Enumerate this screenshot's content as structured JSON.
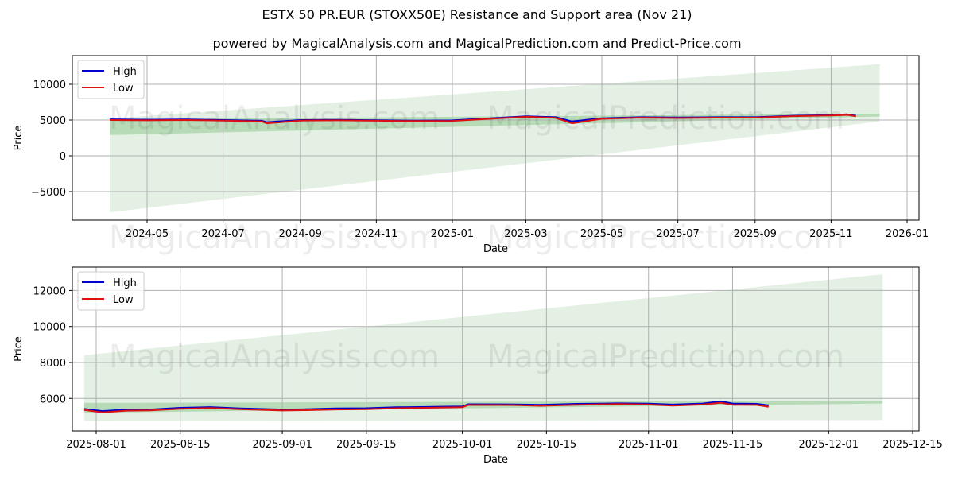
{
  "header": {
    "title": "ESTX 50 PR.EUR (STOXX50E) Resistance and Support area (Nov 21)",
    "subtitle": "powered by MagicalAnalysis.com and MagicalPrediction.com and Predict-Price.com"
  },
  "watermarks": [
    "MagicalAnalysis.com",
    "MagicalPrediction.com"
  ],
  "colors": {
    "high": "#0000cc",
    "low": "#dd1111",
    "band_light": "#e3f0e3",
    "band_dark": "#a8d4a8",
    "grid": "#b0b0b0"
  },
  "chart_data": [
    {
      "type": "line",
      "title": "",
      "xlabel": "Date",
      "ylabel": "Price",
      "ylim": [
        -9000,
        14000
      ],
      "yticks": [
        -5000,
        0,
        5000,
        10000
      ],
      "ytick_labels": [
        "−5000",
        "0",
        "5000",
        "10000"
      ],
      "xticks": [
        "2024-05",
        "2024-07",
        "2024-09",
        "2024-11",
        "2025-01",
        "2025-03",
        "2025-05",
        "2025-07",
        "2025-09",
        "2025-11",
        "2026-01"
      ],
      "grid": true,
      "legend": {
        "position": "upper left",
        "entries": [
          "High",
          "Low"
        ]
      },
      "x": [
        "2024-04-01",
        "2024-05-01",
        "2024-06-01",
        "2024-07-01",
        "2024-08-01",
        "2024-08-05",
        "2024-09-01",
        "2024-10-01",
        "2024-11-01",
        "2024-12-01",
        "2025-01-01",
        "2025-02-01",
        "2025-03-01",
        "2025-03-25",
        "2025-04-07",
        "2025-05-01",
        "2025-06-01",
        "2025-07-01",
        "2025-08-01",
        "2025-09-01",
        "2025-10-01",
        "2025-11-01",
        "2025-11-14",
        "2025-11-21"
      ],
      "series": [
        {
          "name": "High",
          "values": [
            5100,
            5050,
            5080,
            5000,
            4900,
            4700,
            5000,
            5020,
            4980,
            4920,
            4950,
            5250,
            5520,
            5400,
            4800,
            5250,
            5400,
            5350,
            5400,
            5400,
            5600,
            5700,
            5800,
            5600
          ]
        },
        {
          "name": "Low",
          "values": [
            5000,
            4950,
            5000,
            4920,
            4800,
            4550,
            4920,
            4950,
            4900,
            4850,
            4880,
            5180,
            5450,
            5300,
            4550,
            5180,
            5330,
            5280,
            5330,
            5330,
            5550,
            5650,
            5720,
            5530
          ]
        }
      ],
      "bands": [
        {
          "name": "wide support/resistance",
          "x_start": "2024-04-01",
          "x_end": "2025-12-10",
          "upper": [
            5200,
            12800
          ],
          "lower": [
            -7900,
            4800
          ]
        },
        {
          "name": "narrow support/resistance",
          "x_start": "2024-04-01",
          "x_end": "2025-12-10",
          "upper": [
            5100,
            5900
          ],
          "lower": [
            2900,
            5500
          ]
        }
      ]
    },
    {
      "type": "line",
      "title": "",
      "xlabel": "Date",
      "ylabel": "Price",
      "ylim": [
        4200,
        13300
      ],
      "yticks": [
        6000,
        8000,
        10000,
        12000
      ],
      "ytick_labels": [
        "6000",
        "8000",
        "10000",
        "12000"
      ],
      "xticks": [
        "2025-08-01",
        "2025-08-15",
        "2025-09-01",
        "2025-09-15",
        "2025-10-01",
        "2025-10-15",
        "2025-11-01",
        "2025-11-15",
        "2025-12-01",
        "2025-12-15"
      ],
      "grid": true,
      "legend": {
        "position": "upper left",
        "entries": [
          "High",
          "Low"
        ]
      },
      "x": [
        "2025-07-30",
        "2025-08-02",
        "2025-08-06",
        "2025-08-10",
        "2025-08-15",
        "2025-08-20",
        "2025-08-25",
        "2025-09-01",
        "2025-09-05",
        "2025-09-10",
        "2025-09-15",
        "2025-09-20",
        "2025-09-25",
        "2025-10-01",
        "2025-10-02",
        "2025-10-10",
        "2025-10-14",
        "2025-10-20",
        "2025-10-27",
        "2025-11-01",
        "2025-11-05",
        "2025-11-10",
        "2025-11-13",
        "2025-11-15",
        "2025-11-19",
        "2025-11-21"
      ],
      "series": [
        {
          "name": "High",
          "values": [
            5420,
            5300,
            5380,
            5390,
            5480,
            5520,
            5450,
            5390,
            5400,
            5450,
            5460,
            5510,
            5530,
            5560,
            5680,
            5670,
            5650,
            5700,
            5730,
            5710,
            5660,
            5720,
            5840,
            5720,
            5700,
            5620
          ]
        },
        {
          "name": "Low",
          "values": [
            5360,
            5230,
            5320,
            5340,
            5430,
            5470,
            5400,
            5330,
            5350,
            5390,
            5400,
            5460,
            5480,
            5510,
            5640,
            5630,
            5590,
            5650,
            5690,
            5660,
            5600,
            5660,
            5760,
            5650,
            5640,
            5540
          ]
        }
      ],
      "bands": [
        {
          "name": "wide support/resistance",
          "x_start": "2025-07-30",
          "x_end": "2025-12-10",
          "upper": [
            8400,
            12900
          ],
          "lower": [
            4750,
            4800
          ]
        },
        {
          "name": "narrow support/resistance",
          "x_start": "2025-07-30",
          "x_end": "2025-12-10",
          "upper": [
            5750,
            5880
          ],
          "lower": [
            5200,
            5720
          ]
        }
      ]
    }
  ]
}
